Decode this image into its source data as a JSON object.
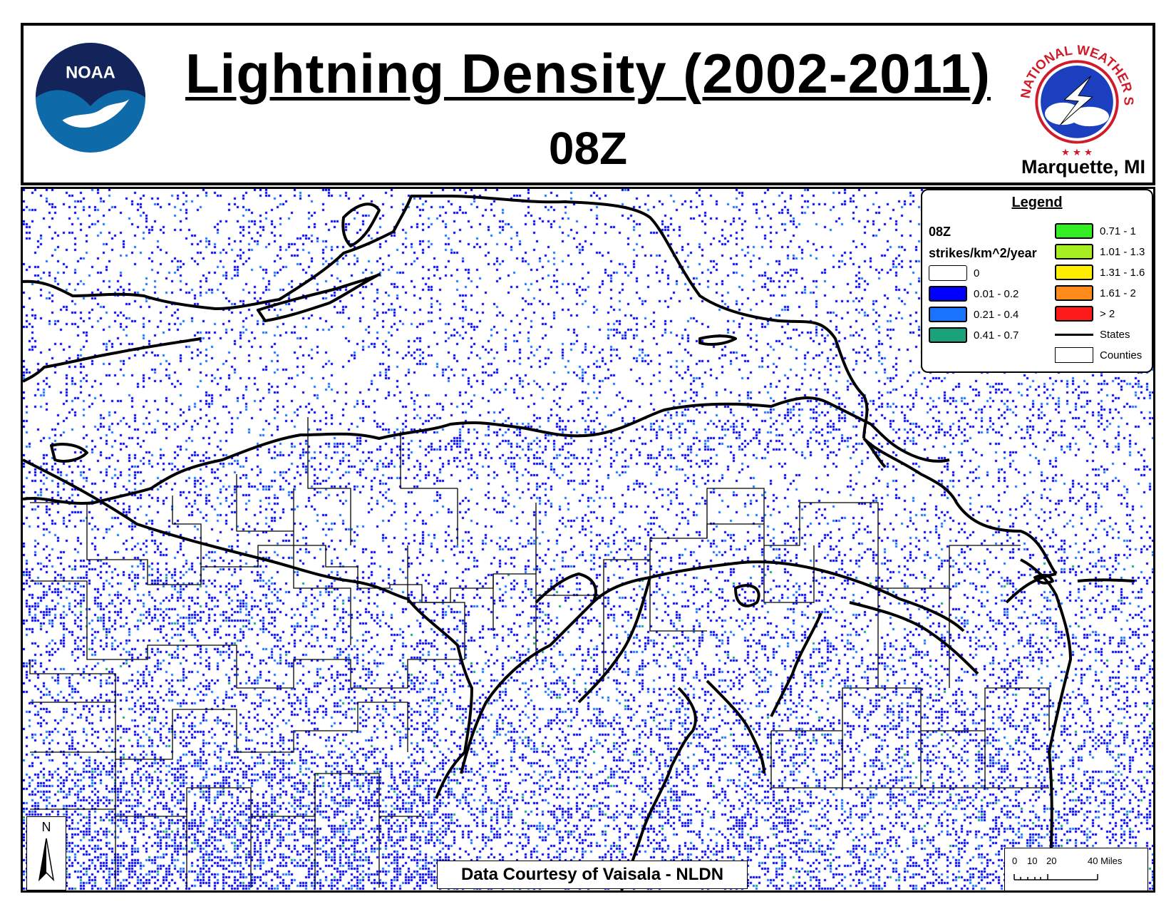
{
  "header": {
    "title": "Lightning Density (2002-2011)",
    "subtitle": "08Z",
    "office": "Marquette, MI",
    "noaa_logo_text": "NOAA",
    "nws_logo_text": "NATIONAL WEATHER SERVICE"
  },
  "legend": {
    "title": "Legend",
    "hour": "08Z",
    "units": "strikes/km^2/year",
    "classes": [
      {
        "label": "0",
        "color": "#ffffff"
      },
      {
        "label": "0.01 - 0.2",
        "color": "#0000ff"
      },
      {
        "label": "0.21 - 0.4",
        "color": "#1a73ff"
      },
      {
        "label": "0.41 - 0.7",
        "color": "#1aa37a"
      },
      {
        "label": "0.71 - 1",
        "color": "#33ee22"
      },
      {
        "label": "1.01 - 1.3",
        "color": "#a6ee22"
      },
      {
        "label": "1.31 - 1.6",
        "color": "#ffee00"
      },
      {
        "label": "1.61 - 2",
        "color": "#ff8c1a"
      },
      {
        "label": "> 2",
        "color": "#ff1a1a"
      }
    ],
    "states_label": "States",
    "counties_label": "Counties"
  },
  "north_arrow": {
    "label": "N"
  },
  "credit": "Data Courtesy of Vaisala - NLDN",
  "scale_bar": {
    "ticks": [
      "0",
      "10",
      "20",
      "40 Miles"
    ]
  }
}
